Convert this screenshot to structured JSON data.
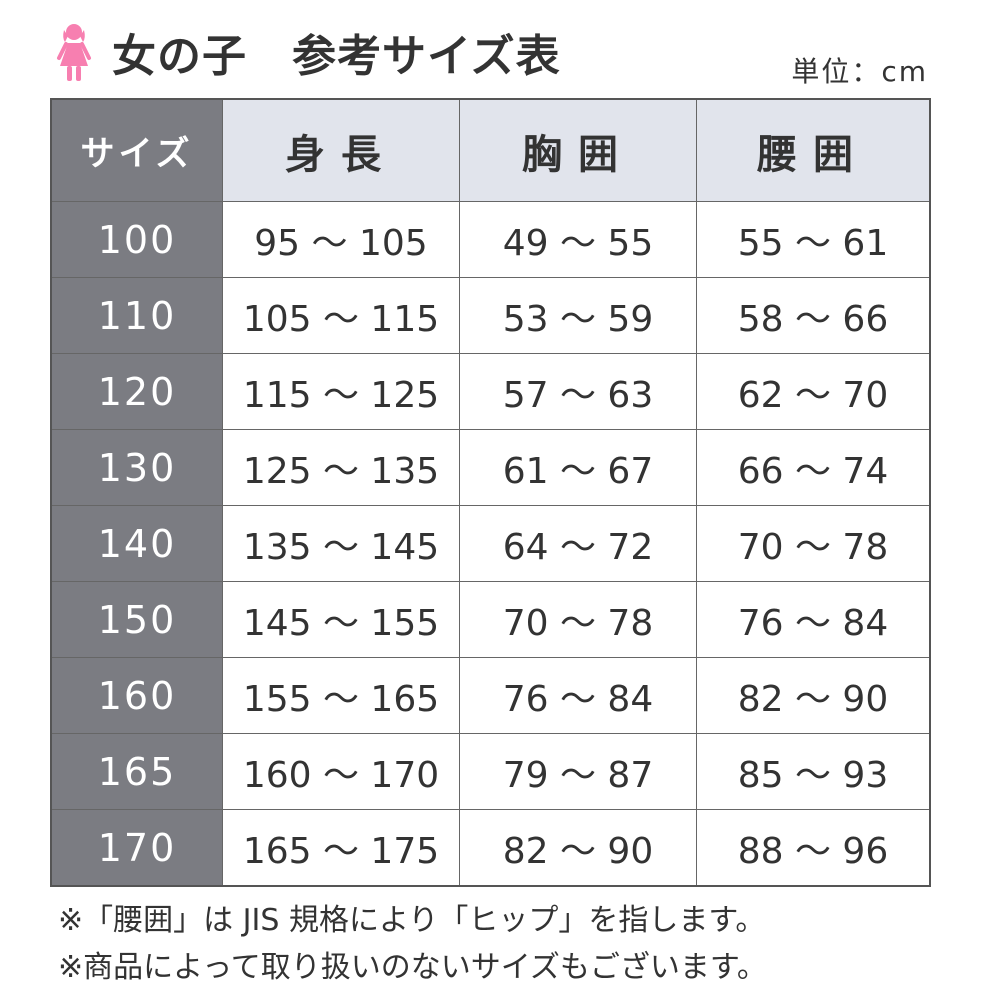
{
  "title": "女の子　参考サイズ表",
  "icon": "girl-icon",
  "icon_color": "#f77fb0",
  "unit": "単位：cm",
  "table": {
    "headers": [
      "サイズ",
      "身長",
      "胸囲",
      "腰囲"
    ],
    "rows": [
      {
        "size": "100",
        "height": "95 〜 105",
        "chest": "49 〜 55",
        "hip": "55 〜 61"
      },
      {
        "size": "110",
        "height": "105 〜 115",
        "chest": "53 〜 59",
        "hip": "58 〜 66"
      },
      {
        "size": "120",
        "height": "115 〜 125",
        "chest": "57 〜 63",
        "hip": "62 〜 70"
      },
      {
        "size": "130",
        "height": "125 〜 135",
        "chest": "61 〜 67",
        "hip": "66 〜 74"
      },
      {
        "size": "140",
        "height": "135 〜 145",
        "chest": "64 〜 72",
        "hip": "70 〜 78"
      },
      {
        "size": "150",
        "height": "145 〜 155",
        "chest": "70 〜 78",
        "hip": "76 〜 84"
      },
      {
        "size": "160",
        "height": "155 〜 165",
        "chest": "76 〜 84",
        "hip": "82 〜 90"
      },
      {
        "size": "165",
        "height": "160 〜 170",
        "chest": "79 〜 87",
        "hip": "85 〜 93"
      },
      {
        "size": "170",
        "height": "165 〜 175",
        "chest": "82 〜 90",
        "hip": "88 〜 96"
      }
    ]
  },
  "notes": [
    "※「腰囲」は JIS 規格により「ヒップ」を指します。",
    "※商品によって取り扱いのないサイズもございます。"
  ]
}
